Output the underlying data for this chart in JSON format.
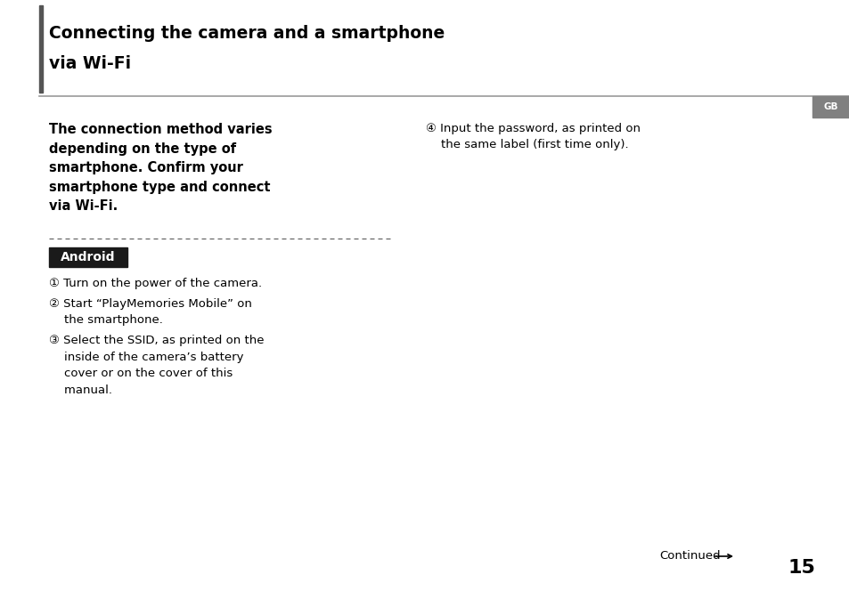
{
  "bg_color": "#ffffff",
  "header_border_color": "#999999",
  "header_left_bar_color": "#555555",
  "header_title_line1": "Connecting the camera and a smartphone",
  "header_title_line2": "via Wi-Fi",
  "header_title_fontsize": 13.5,
  "gb_badge_bg": "#808080",
  "gb_badge_text": "GB",
  "gb_badge_fontsize": 7.5,
  "intro_bold_text": "The connection method varies\ndepending on the type of\nsmartphone. Confirm your\nsmartphone type and connect\nvia Wi-Fi.",
  "intro_bold_fontsize": 10.5,
  "android_badge_bg": "#1a1a1a",
  "android_badge_text": "Android",
  "android_badge_fontsize": 10,
  "android_badge_text_color": "#ffffff",
  "steps_left": [
    "① Turn on the power of the camera.",
    "② Start “PlayMemories Mobile” on\n    the smartphone.",
    "③ Select the SSID, as printed on the\n    inside of the camera’s battery\n    cover or on the cover of this\n    manual."
  ],
  "step_right_line1": "④ Input the password, as printed on",
  "step_right_line2": "    the same label (first time only).",
  "steps_fontsize": 9.5,
  "continued_text": "Continued",
  "page_number": "15",
  "page_number_fontsize": 16,
  "continued_fontsize": 9.5
}
